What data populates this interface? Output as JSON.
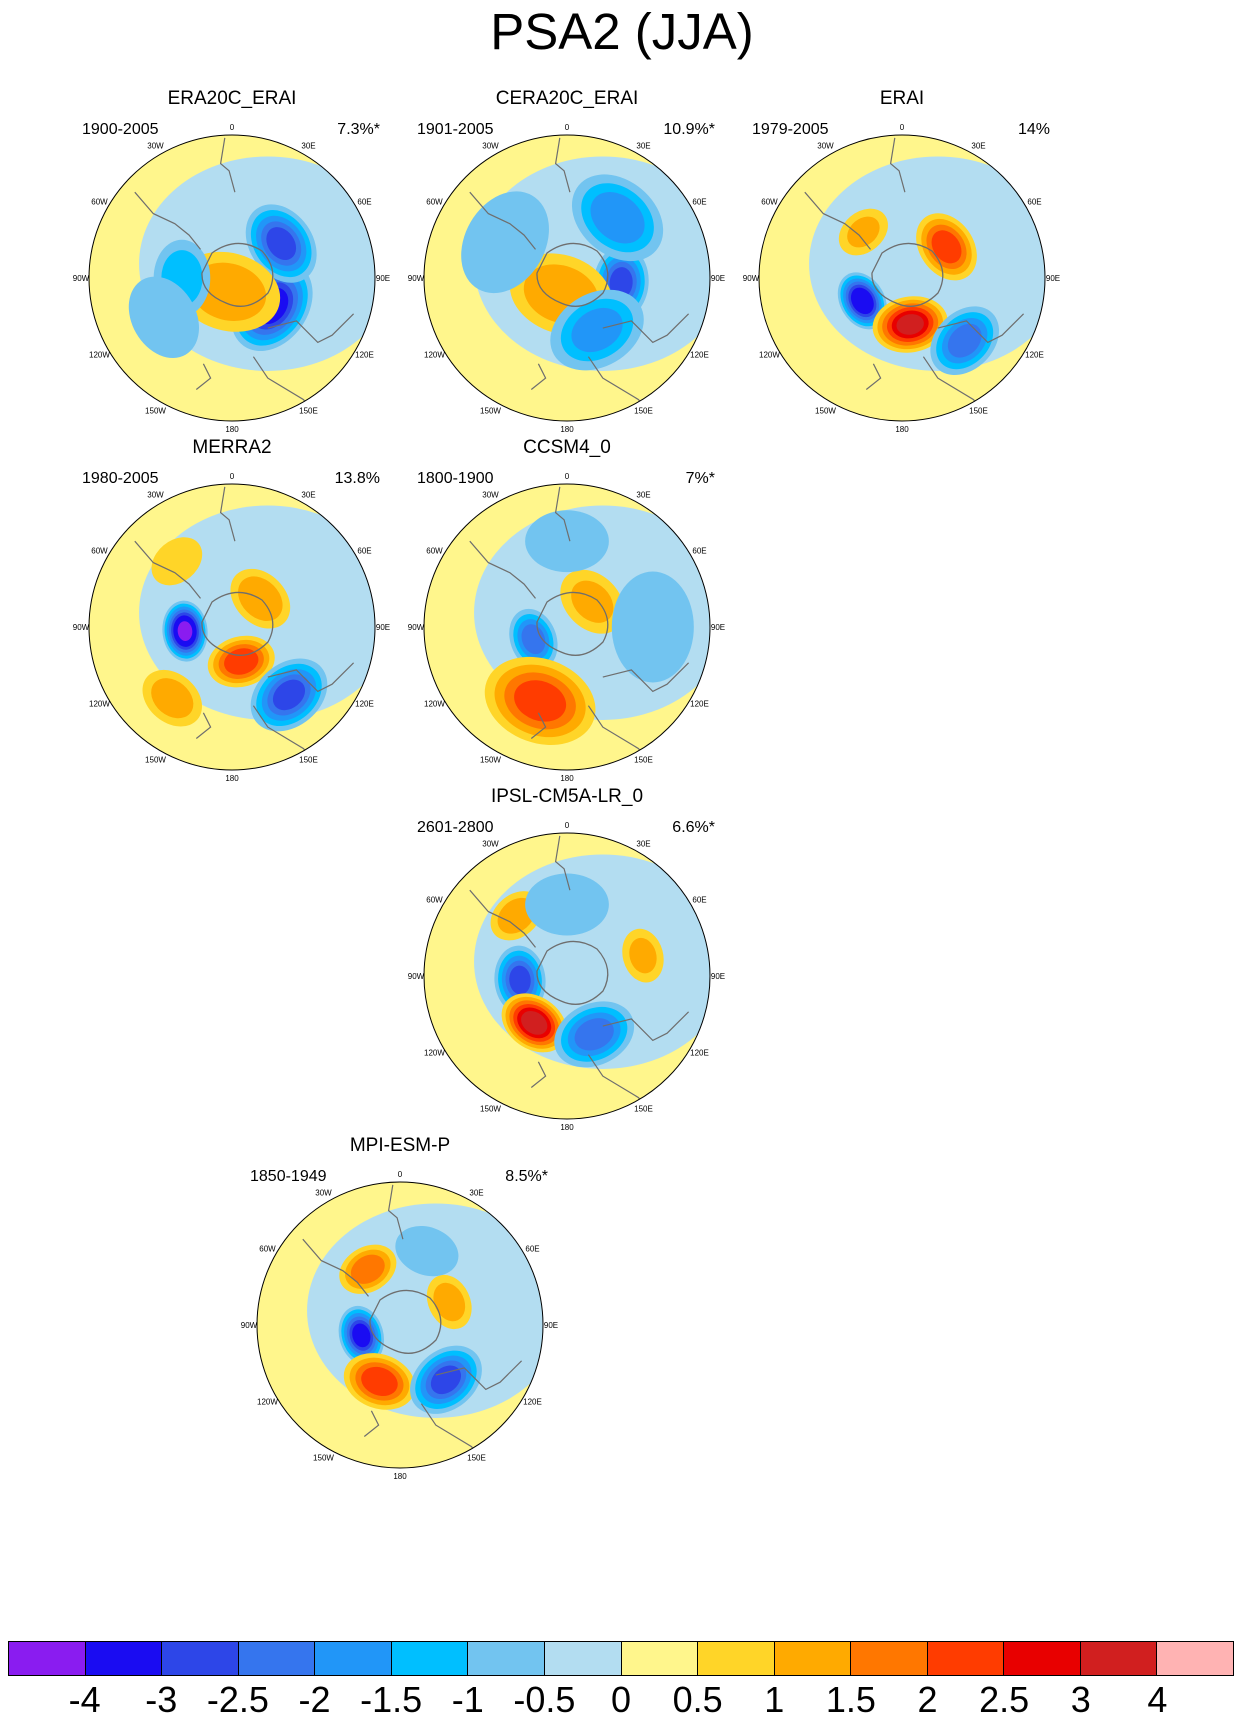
{
  "title": "PSA2 (JJA)",
  "lon_labels": [
    "0",
    "30E",
    "60E",
    "90E",
    "120E",
    "150E",
    "180",
    "150W",
    "120W",
    "90W",
    "60W",
    "30W"
  ],
  "panels": [
    {
      "name": "ERA20C_ERAI",
      "years": "1900-2005",
      "pct": "7.3%*",
      "anomalies": [
        [
          -3.2,
          125,
          0.34,
          0.18
        ],
        [
          -2.6,
          55,
          0.42,
          0.16
        ],
        [
          1.3,
          195,
          0.1,
          0.22
        ],
        [
          -1.3,
          270,
          0.35,
          0.16
        ],
        [
          -0.8,
          240,
          0.55,
          0.2
        ]
      ]
    },
    {
      "name": "CERA20C_ERAI",
      "years": "1901-2005",
      "pct": "10.9%*",
      "anomalies": [
        [
          -2.6,
          95,
          0.38,
          0.14
        ],
        [
          -1.8,
          40,
          0.55,
          0.2
        ],
        [
          1.3,
          200,
          0.12,
          0.22
        ],
        [
          -1.6,
          150,
          0.42,
          0.2
        ],
        [
          -0.8,
          300,
          0.5,
          0.25
        ]
      ]
    },
    {
      "name": "ERAI",
      "years": "1979-2005",
      "pct": "14%",
      "anomalies": [
        [
          -3.6,
          240,
          0.32,
          0.11
        ],
        [
          3.0,
          170,
          0.33,
          0.14
        ],
        [
          2.2,
          55,
          0.38,
          0.14
        ],
        [
          -2.2,
          135,
          0.62,
          0.15
        ],
        [
          1.0,
          320,
          0.42,
          0.12
        ]
      ]
    },
    {
      "name": "MERRA2",
      "years": "1980-2005",
      "pct": "13.8%",
      "anomalies": [
        [
          -4.0,
          265,
          0.33,
          0.11
        ],
        [
          2.3,
          165,
          0.25,
          0.13
        ],
        [
          -2.6,
          140,
          0.62,
          0.16
        ],
        [
          1.4,
          45,
          0.28,
          0.14
        ],
        [
          1.2,
          220,
          0.65,
          0.14
        ],
        [
          0.8,
          320,
          0.6,
          0.13
        ]
      ]
    },
    {
      "name": "CCSM4_0",
      "years": "1800-1900",
      "pct": "7%*",
      "anomalies": [
        [
          -2.2,
          250,
          0.25,
          0.12
        ],
        [
          2.1,
          200,
          0.55,
          0.22
        ],
        [
          1.0,
          45,
          0.25,
          0.16
        ],
        [
          -0.9,
          90,
          0.6,
          0.25
        ],
        [
          -0.7,
          0,
          0.6,
          0.2
        ]
      ]
    },
    {
      "name": "IPSL-CM5A-LR_0",
      "years": "2601-2800",
      "pct": "6.6%*",
      "anomalies": [
        [
          -2.6,
          265,
          0.33,
          0.13
        ],
        [
          3.2,
          215,
          0.4,
          0.13
        ],
        [
          -2.2,
          155,
          0.45,
          0.16
        ],
        [
          1.3,
          320,
          0.55,
          0.12
        ],
        [
          1.0,
          75,
          0.55,
          0.12
        ],
        [
          -0.7,
          0,
          0.5,
          0.2
        ]
      ]
    },
    {
      "name": "MPI-ESM-P",
      "years": "1850-1949",
      "pct": "8.5%*",
      "anomalies": [
        [
          -3.2,
          255,
          0.28,
          0.11
        ],
        [
          2.3,
          200,
          0.42,
          0.14
        ],
        [
          -2.6,
          140,
          0.5,
          0.15
        ],
        [
          1.8,
          330,
          0.45,
          0.12
        ],
        [
          1.2,
          65,
          0.38,
          0.12
        ],
        [
          -0.8,
          20,
          0.55,
          0.15
        ]
      ]
    }
  ],
  "colorbar": {
    "colors": [
      "#8a1cf0",
      "#1a0cf2",
      "#2d46e8",
      "#3575ee",
      "#2196f8",
      "#00bfff",
      "#72c4f0",
      "#b3ddf1",
      "#fff68c",
      "#ffd528",
      "#ffaa00",
      "#ff7700",
      "#ff3c00",
      "#e80000",
      "#d11f1f",
      "#ffb3b3"
    ],
    "labels": [
      "-4",
      "-3",
      "-2.5",
      "-2",
      "-1.5",
      "-1",
      "-0.5",
      "0",
      "0.5",
      "1",
      "1.5",
      "2",
      "2.5",
      "3",
      "4"
    ],
    "levels": [
      -4,
      -3,
      -2.5,
      -2,
      -1.5,
      -1,
      -0.5,
      0,
      0.5,
      1,
      1.5,
      2,
      2.5,
      3,
      4
    ]
  }
}
